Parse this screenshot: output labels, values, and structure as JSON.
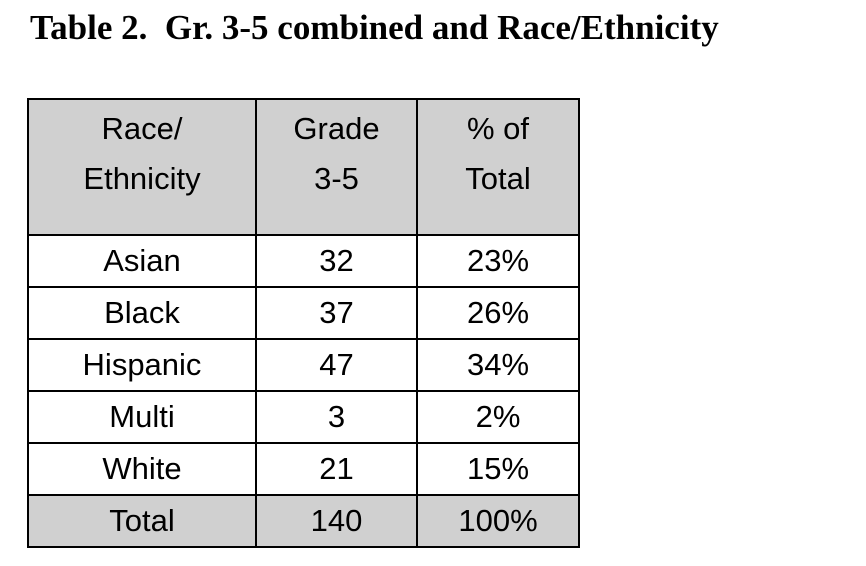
{
  "title": "Table 2.  Gr. 3-5 combined and Race/Ethnicity",
  "table": {
    "header": [
      [
        "Race/",
        "Ethnicity"
      ],
      [
        "Grade",
        "3-5"
      ],
      [
        "% of",
        "Total"
      ]
    ],
    "rows": [
      [
        "Asian",
        32,
        "23%"
      ],
      [
        "Black",
        37,
        "26%"
      ],
      [
        "Hispanic",
        47,
        "34%"
      ],
      [
        "Multi",
        3,
        "2%"
      ],
      [
        "White",
        21,
        "15%"
      ]
    ],
    "total": [
      "Total",
      140,
      "100%"
    ]
  }
}
